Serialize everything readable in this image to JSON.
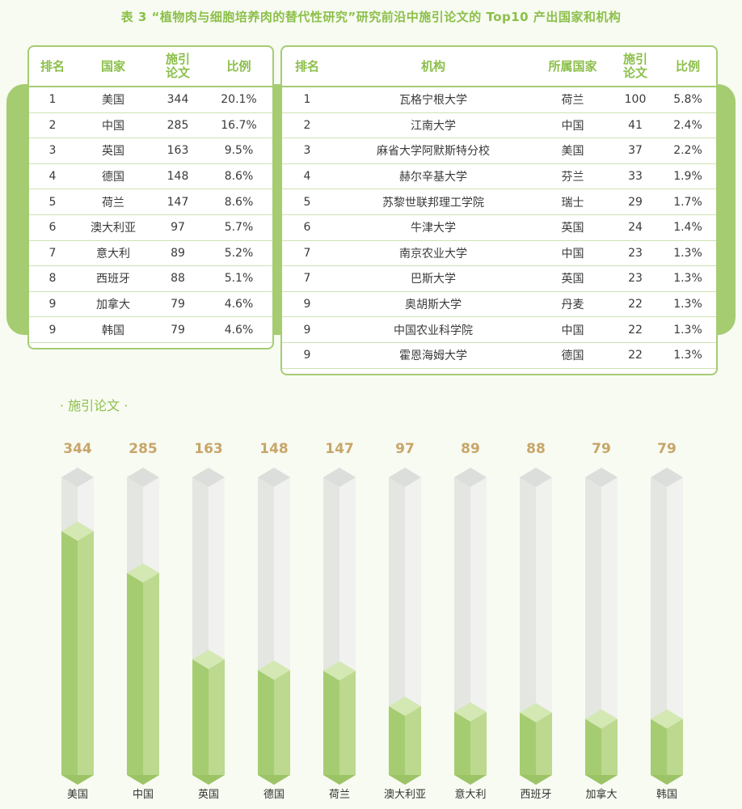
{
  "title": "表 3 “植物肉与细胞培养肉的替代性研究”研究前沿中施引论文的 Top10 产出国家和机构",
  "country_table": {
    "headers": [
      "排名",
      "国家",
      "施引\n论文",
      "比例"
    ],
    "rows": [
      {
        "rank": "1",
        "country": "美国",
        "papers": "344",
        "ratio": "20.1%"
      },
      {
        "rank": "2",
        "country": "中国",
        "papers": "285",
        "ratio": "16.7%"
      },
      {
        "rank": "3",
        "country": "英国",
        "papers": "163",
        "ratio": "9.5%"
      },
      {
        "rank": "4",
        "country": "德国",
        "papers": "148",
        "ratio": "8.6%"
      },
      {
        "rank": "5",
        "country": "荷兰",
        "papers": "147",
        "ratio": "8.6%"
      },
      {
        "rank": "6",
        "country": "澳大利亚",
        "papers": "97",
        "ratio": "5.7%"
      },
      {
        "rank": "7",
        "country": "意大利",
        "papers": "89",
        "ratio": "5.2%"
      },
      {
        "rank": "8",
        "country": "西班牙",
        "papers": "88",
        "ratio": "5.1%"
      },
      {
        "rank": "9",
        "country": "加拿大",
        "papers": "79",
        "ratio": "4.6%"
      },
      {
        "rank": "9",
        "country": "韩国",
        "papers": "79",
        "ratio": "4.6%"
      }
    ]
  },
  "institution_table": {
    "headers": [
      "排名",
      "机构",
      "所属国家",
      "施引\n论文",
      "比例"
    ],
    "rows": [
      {
        "rank": "1",
        "institution": "瓦格宁根大学",
        "country": "荷兰",
        "papers": "100",
        "ratio": "5.8%"
      },
      {
        "rank": "2",
        "institution": "江南大学",
        "country": "中国",
        "papers": "41",
        "ratio": "2.4%"
      },
      {
        "rank": "3",
        "institution": "麻省大学阿默斯特分校",
        "country": "美国",
        "papers": "37",
        "ratio": "2.2%"
      },
      {
        "rank": "4",
        "institution": "赫尔辛基大学",
        "country": "芬兰",
        "papers": "33",
        "ratio": "1.9%"
      },
      {
        "rank": "5",
        "institution": "苏黎世联邦理工学院",
        "country": "瑞士",
        "papers": "29",
        "ratio": "1.7%"
      },
      {
        "rank": "6",
        "institution": "牛津大学",
        "country": "英国",
        "papers": "24",
        "ratio": "1.4%"
      },
      {
        "rank": "7",
        "institution": "南京农业大学",
        "country": "中国",
        "papers": "23",
        "ratio": "1.3%"
      },
      {
        "rank": "7",
        "institution": "巴斯大学",
        "country": "英国",
        "papers": "23",
        "ratio": "1.3%"
      },
      {
        "rank": "9",
        "institution": "奥胡斯大学",
        "country": "丹麦",
        "papers": "22",
        "ratio": "1.3%"
      },
      {
        "rank": "9",
        "institution": "中国农业科学院",
        "country": "中国",
        "papers": "22",
        "ratio": "1.3%"
      },
      {
        "rank": "9",
        "institution": "霍恩海姆大学",
        "country": "德国",
        "papers": "22",
        "ratio": "1.3%"
      }
    ]
  },
  "section_label": "· 施引论文 ·",
  "colors": {
    "accent": "#a6cc72",
    "title": "#8cbf4a",
    "bar_fill": "#a6cc72",
    "value_label": "#c8a56a"
  },
  "chart_data": {
    "type": "bar",
    "categories": [
      "美国",
      "中国",
      "英国",
      "德国",
      "荷兰",
      "澳大利亚",
      "意大利",
      "西班牙",
      "加拿大",
      "韩国"
    ],
    "values": [
      344,
      285,
      163,
      148,
      147,
      97,
      89,
      88,
      79,
      79
    ],
    "title": "施引论文",
    "xlabel": "",
    "ylabel": "",
    "ylim": [
      0,
      400
    ],
    "grid": false,
    "legend": "none"
  }
}
